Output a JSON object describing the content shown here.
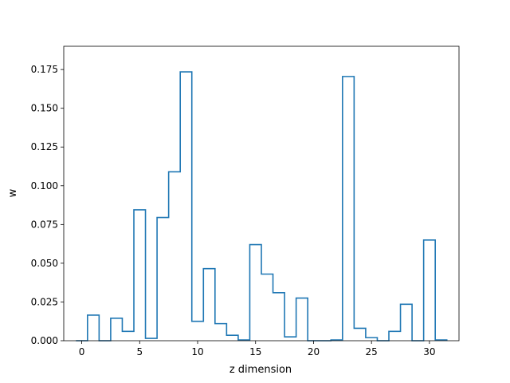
{
  "chart_data": {
    "type": "step",
    "title": "",
    "xlabel": "z dimension",
    "ylabel": "w",
    "xlim": [
      -1.55,
      32.55
    ],
    "ylim": [
      0,
      0.19
    ],
    "xticks": [
      0,
      5,
      10,
      15,
      20,
      25,
      30
    ],
    "xtick_labels": [
      "0",
      "5",
      "10",
      "15",
      "20",
      "25",
      "30"
    ],
    "yticks": [
      0,
      0.025,
      0.05,
      0.075,
      0.1,
      0.125,
      0.15,
      0.175
    ],
    "ytick_labels": [
      "0.000",
      "0.025",
      "0.050",
      "0.075",
      "0.100",
      "0.125",
      "0.150",
      "0.175"
    ],
    "grid": false,
    "legend": "none",
    "series": [
      {
        "color": "#1f77b4",
        "x": [
          0,
          1,
          2,
          3,
          4,
          5,
          6,
          7,
          8,
          9,
          10,
          11,
          12,
          13,
          14,
          15,
          16,
          17,
          18,
          19,
          20,
          21,
          22,
          23,
          24,
          25,
          26,
          27,
          28,
          29,
          30,
          31
        ],
        "values": [
          0.0,
          0.0165,
          0.0,
          0.0145,
          0.006,
          0.0845,
          0.0015,
          0.0795,
          0.109,
          0.1735,
          0.0125,
          0.0465,
          0.011,
          0.0035,
          0.0005,
          0.062,
          0.043,
          0.031,
          0.0025,
          0.0275,
          0.0,
          0.0,
          0.0005,
          0.1705,
          0.008,
          0.002,
          0.0,
          0.006,
          0.0235,
          0.0,
          0.065,
          0.0005
        ]
      }
    ]
  }
}
